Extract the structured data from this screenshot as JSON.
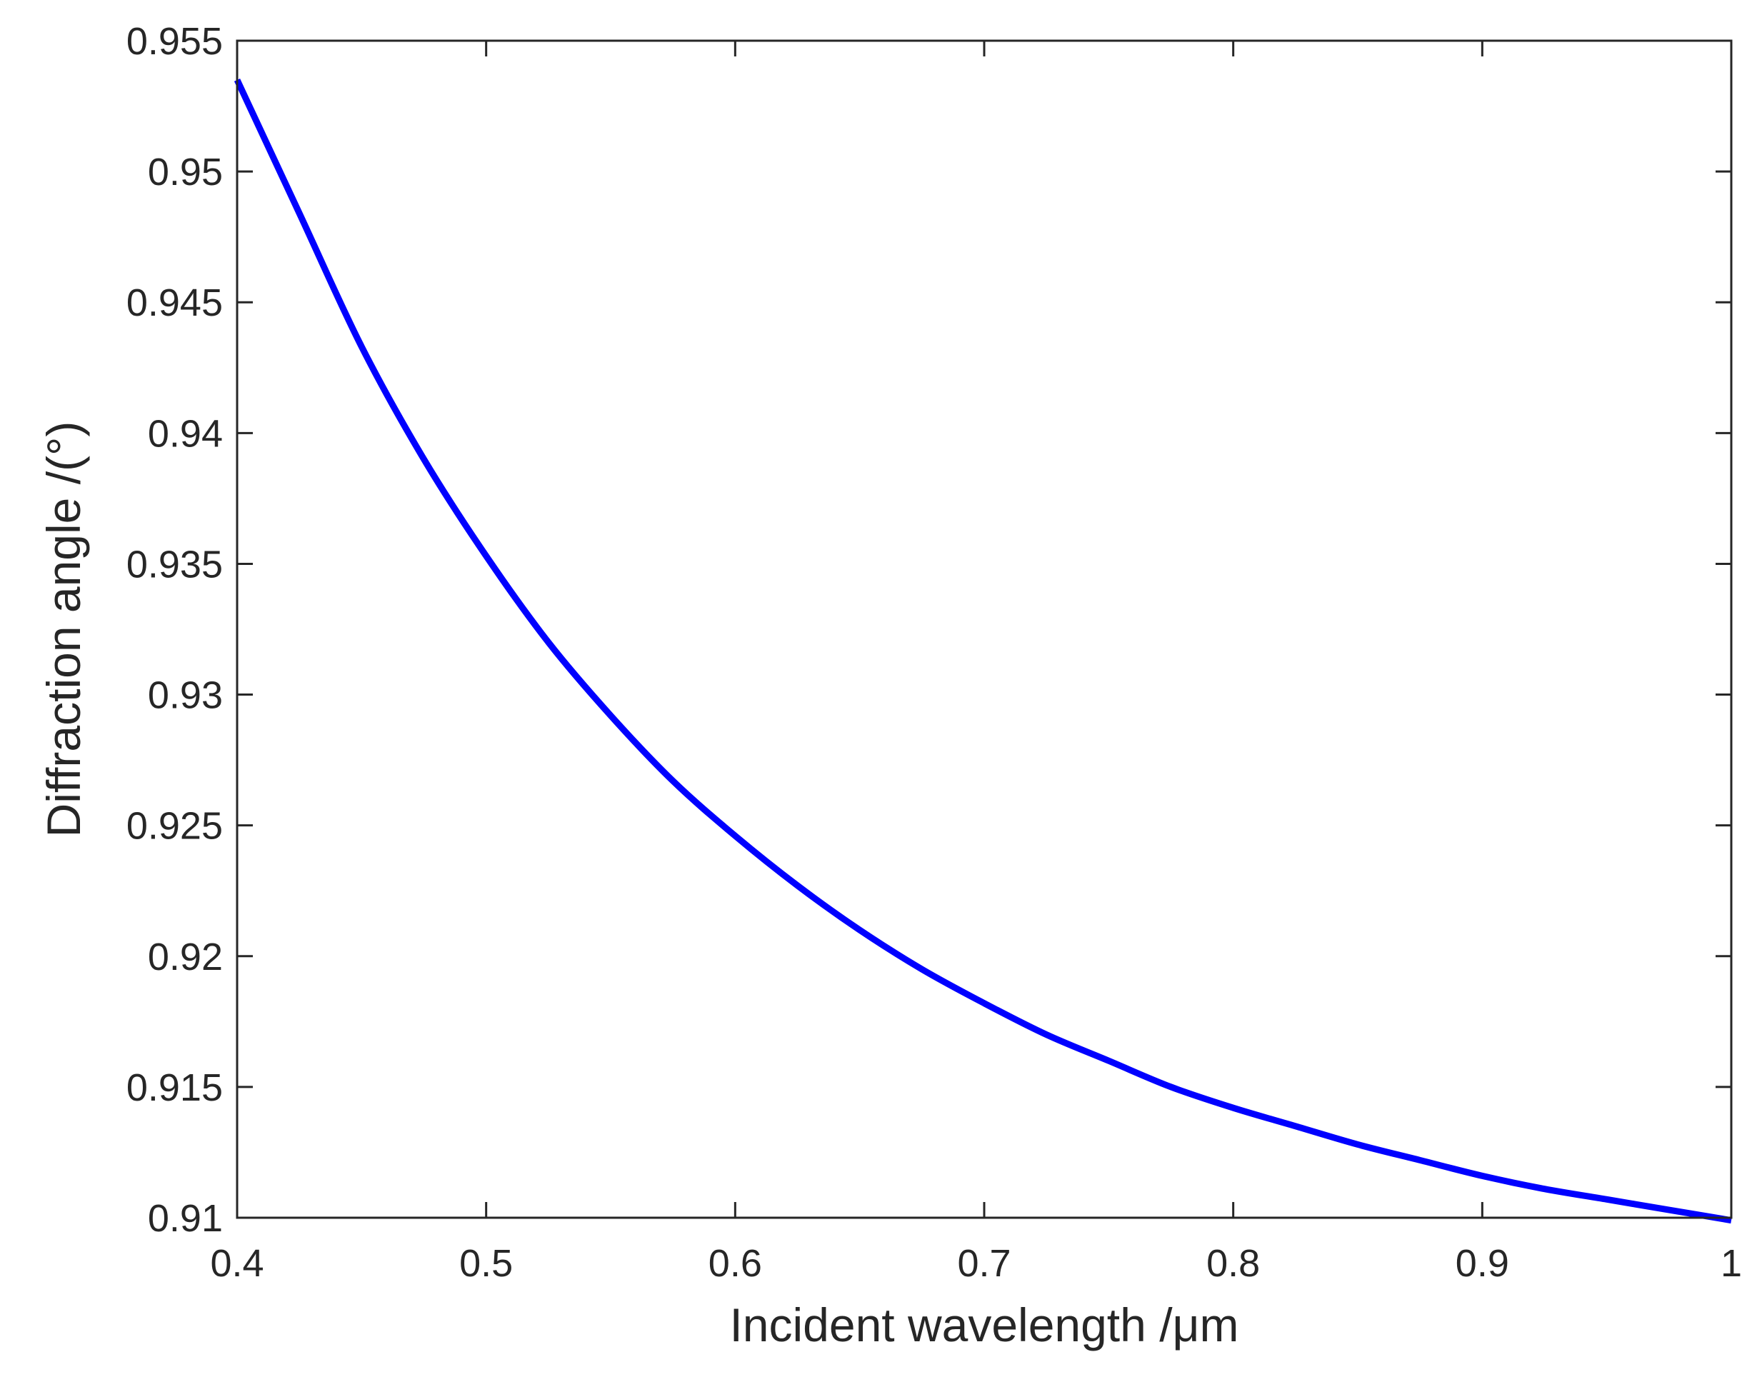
{
  "chart_data": {
    "type": "line",
    "title": "",
    "xlabel": "Incident wavelength /μm",
    "ylabel": "Diffraction angle /(°)",
    "xlim": [
      0.4,
      1.0
    ],
    "ylim": [
      0.91,
      0.955
    ],
    "x_ticks": [
      "0.4",
      "0.5",
      "0.6",
      "0.7",
      "0.8",
      "0.9",
      "1"
    ],
    "y_ticks": [
      "0.91",
      "0.915",
      "0.92",
      "0.925",
      "0.93",
      "0.935",
      "0.94",
      "0.945",
      "0.95",
      "0.955"
    ],
    "grid": false,
    "box": true,
    "series": [
      {
        "color": "#0000ff",
        "x": [
          0.4,
          0.425,
          0.45,
          0.475,
          0.5,
          0.525,
          0.55,
          0.575,
          0.6,
          0.625,
          0.65,
          0.675,
          0.7,
          0.725,
          0.75,
          0.775,
          0.8,
          0.825,
          0.85,
          0.875,
          0.9,
          0.925,
          0.95,
          0.975,
          1.0
        ],
        "y": [
          0.9535,
          0.9484,
          0.9433,
          0.939,
          0.9353,
          0.932,
          0.9292,
          0.9267,
          0.9246,
          0.9227,
          0.921,
          0.9195,
          0.9182,
          0.917,
          0.916,
          0.915,
          0.9142,
          0.9135,
          0.9128,
          0.9122,
          0.9116,
          0.9111,
          0.9107,
          0.9103,
          0.9099
        ]
      }
    ]
  }
}
